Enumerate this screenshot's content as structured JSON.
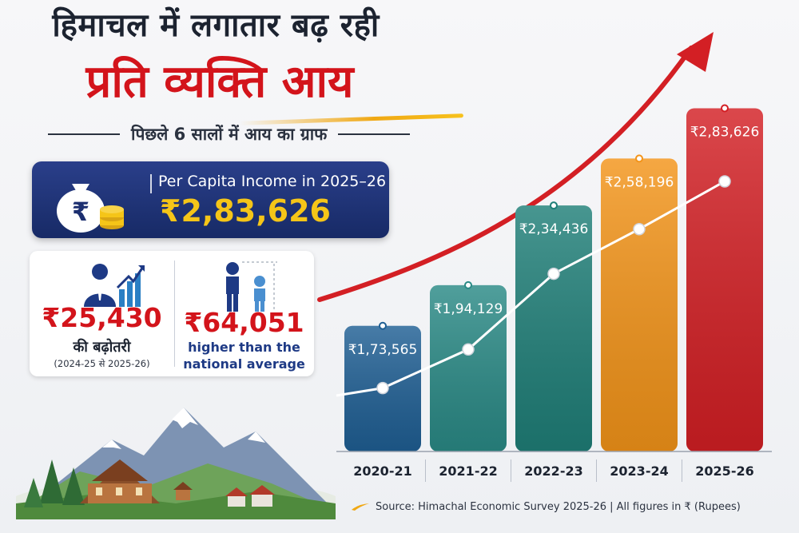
{
  "header": {
    "line1": "हिमाचल में लगातार बढ़ रही",
    "line2": "प्रति व्यक्ति आय",
    "subtitle": "पिछले 6 सालों में आय का ग्राफ"
  },
  "per_capita_card": {
    "label": "Per Capita Income in 2025–26",
    "value": "₹2,83,626",
    "icon": "money-bag-icon"
  },
  "stats": {
    "growth": {
      "value": "₹25,430",
      "label": "की बढ़ोतरी",
      "sub": "(2024-25 से 2025-26)",
      "icon": "businessman-chart-icon"
    },
    "national": {
      "value": "₹64,051",
      "label_line1": "higher than the",
      "label_line2": "national average",
      "icon": "people-comparison-icon"
    }
  },
  "footer": {
    "source": "Source: Himachal Economic Survey 2025-26 | All figures in ₹ (Rupees)"
  },
  "colors": {
    "title_red": "#d3141b",
    "card_navy": "#1c2f70",
    "card_gold": "#f5c518"
  },
  "chart_data": {
    "type": "bar",
    "categories": [
      "2020-21",
      "2021-22",
      "2022-23",
      "2023-24",
      "2025-26"
    ],
    "values": [
      173565,
      194129,
      234436,
      258196,
      283626
    ],
    "value_labels": [
      "₹1,73,565",
      "₹1,94,129",
      "₹2,34,436",
      "₹2,58,196",
      "₹2,83,626"
    ],
    "bar_colors": [
      "#1f5f94",
      "#2a8a86",
      "#1f7f78",
      "#f39419",
      "#d31f24"
    ],
    "overlay_line": true,
    "trend_arrow": true,
    "xlabel": "",
    "ylabel": "",
    "ylim": [
      0,
      300000
    ]
  }
}
